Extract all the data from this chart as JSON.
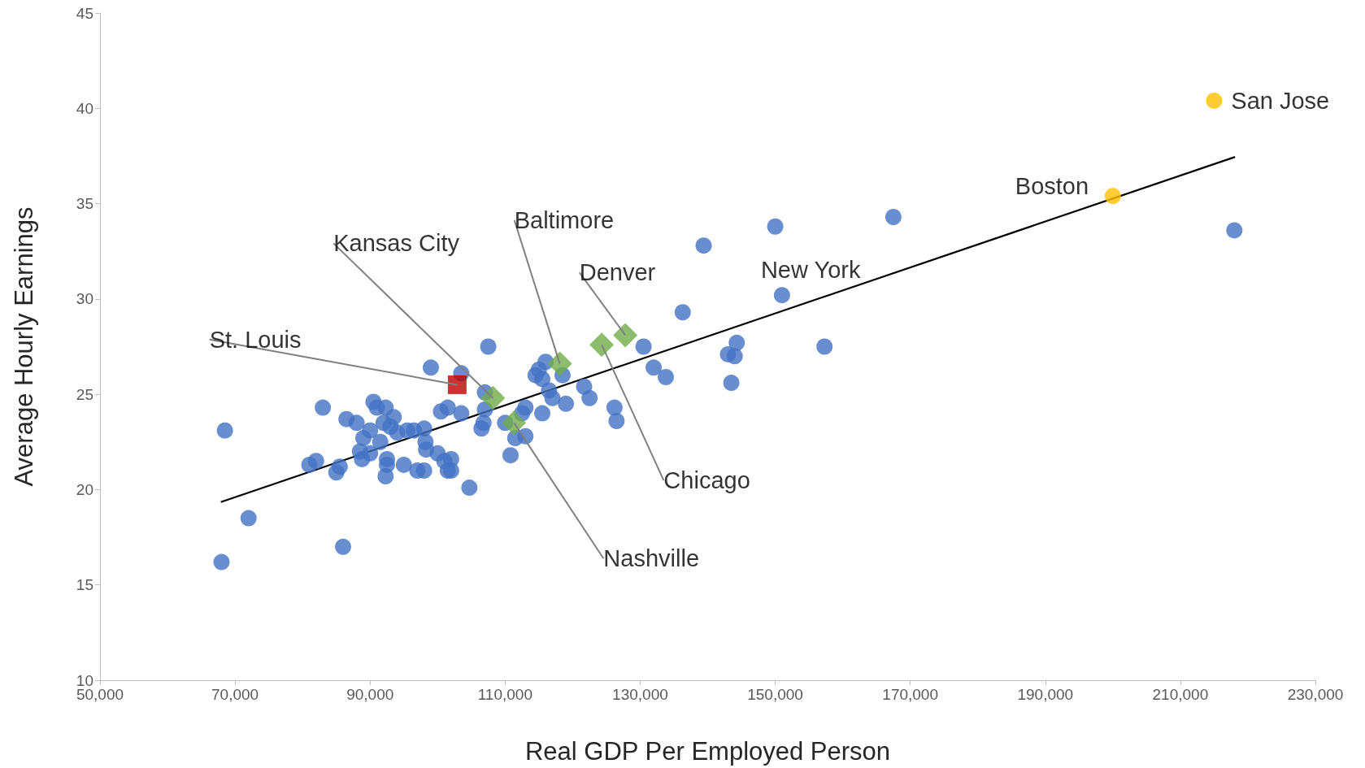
{
  "chart_data": {
    "type": "scatter",
    "xlabel": "Real GDP Per Employed Person",
    "ylabel": "Average Hourly Earnings",
    "xlim": [
      50000,
      230000
    ],
    "ylim": [
      10,
      45
    ],
    "xticks": [
      {
        "value": 50000,
        "label": "50,000"
      },
      {
        "value": 70000,
        "label": "70,000"
      },
      {
        "value": 90000,
        "label": "90,000"
      },
      {
        "value": 110000,
        "label": "110,000"
      },
      {
        "value": 130000,
        "label": "130,000"
      },
      {
        "value": 150000,
        "label": "150,000"
      },
      {
        "value": 170000,
        "label": "170,000"
      },
      {
        "value": 190000,
        "label": "190,000"
      },
      {
        "value": 210000,
        "label": "210,000"
      },
      {
        "value": 230000,
        "label": "230,000"
      }
    ],
    "yticks": [
      10,
      15,
      20,
      25,
      30,
      35,
      40,
      45
    ],
    "grid": false,
    "marker": "circle",
    "series": [
      {
        "color": "#4472c4",
        "x": [
          68000,
          68500,
          72000,
          86000,
          81000,
          82000,
          83000,
          85000,
          85500,
          86500,
          88000,
          88500,
          88800,
          89000,
          90000,
          90000,
          90500,
          91000,
          91500,
          92000,
          92300,
          92500,
          92300,
          92500,
          93000,
          93500,
          94000,
          95000,
          95500,
          96500,
          97000,
          98000,
          98000,
          98200,
          98300,
          99000,
          100000,
          100500,
          101000,
          101500,
          101500,
          102000,
          102000,
          103500,
          103500,
          104700,
          106500,
          106800,
          107000,
          107000,
          107500,
          110000,
          110800,
          111500,
          112000,
          112500,
          113000,
          113000,
          114500,
          115000,
          115500,
          115500,
          116000,
          116500,
          117000,
          118500,
          119000,
          121700,
          122500,
          126200,
          126500,
          130500,
          132000,
          133800,
          136300,
          139400,
          143000,
          143500,
          144000,
          144300,
          150000,
          151000,
          157300,
          167500,
          218000
        ],
        "values": [
          16.2,
          23.1,
          18.5,
          17.0,
          21.3,
          21.5,
          24.3,
          20.9,
          21.2,
          23.7,
          23.5,
          22.0,
          21.6,
          22.7,
          23.1,
          21.9,
          24.6,
          24.3,
          22.5,
          23.5,
          24.3,
          21.6,
          20.7,
          21.3,
          23.3,
          23.8,
          23.0,
          21.3,
          23.1,
          23.1,
          21.0,
          23.2,
          21.0,
          22.5,
          22.1,
          26.4,
          21.9,
          24.1,
          21.5,
          24.3,
          21.0,
          21.6,
          21.0,
          26.1,
          24.0,
          20.1,
          23.2,
          23.5,
          24.2,
          25.1,
          27.5,
          23.5,
          21.8,
          22.7,
          null,
          24.0,
          22.8,
          24.3,
          26.0,
          26.3,
          24.0,
          25.8,
          26.7,
          25.2,
          24.8,
          26.0,
          24.5,
          25.4,
          24.8,
          24.3,
          23.6,
          27.5,
          26.4,
          25.9,
          29.3,
          32.8,
          27.1,
          25.6,
          27.0,
          27.7,
          33.8,
          30.2,
          27.5,
          34.3,
          33.6
        ]
      },
      {
        "color": "#ffc000",
        "x": [
          200000,
          215000
        ],
        "values": [
          35.4,
          40.4
        ]
      },
      {
        "color": "#c00000",
        "marker": "square",
        "x": [
          102900
        ],
        "values": [
          25.5
        ]
      },
      {
        "color": "#70ad47",
        "marker": "diamond",
        "x": [
          108200,
          111300,
          118100,
          124300,
          127800
        ],
        "values": [
          24.8,
          23.5,
          26.6,
          27.6,
          28.1
        ]
      },
      {
        "type": "line",
        "color": "#000000",
        "marker": "none",
        "x": [
          67900,
          218100
        ],
        "values": [
          19.35,
          37.45
        ]
      }
    ],
    "annotations": [
      {
        "text": "St. Louis",
        "x": 102900,
        "y": 25.5
      },
      {
        "text": "Kansas City",
        "x": 108200,
        "y": 24.8
      },
      {
        "text": "Baltimore",
        "x": 118100,
        "y": 26.6
      },
      {
        "text": "Denver",
        "x": 127800,
        "y": 28.1
      },
      {
        "text": "New York",
        "x": 151000,
        "y": 30.2
      },
      {
        "text": "Chicago",
        "x": 124300,
        "y": 27.6
      },
      {
        "text": "Nashville",
        "x": 111300,
        "y": 23.5
      },
      {
        "text": "Boston",
        "x": 200000,
        "y": 35.4
      },
      {
        "text": "San Jose",
        "x": 215000,
        "y": 40.4
      }
    ]
  }
}
